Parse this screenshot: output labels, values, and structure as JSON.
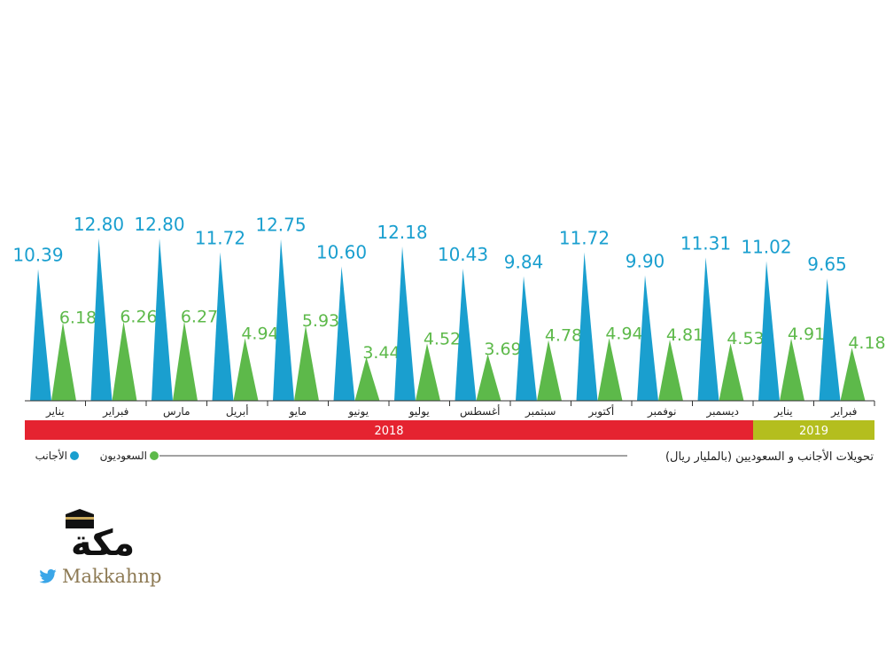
{
  "chart_data": {
    "type": "bar",
    "title": "تحويلات الأجانب و السعوديين (بالمليار ريال)",
    "categories": [
      "يناير",
      "فبراير",
      "مارس",
      "أبريل",
      "مايو",
      "يونيو",
      "يوليو",
      "أغسطس",
      "سبتمبر",
      "أكتوبر",
      "نوفمبر",
      "ديسمبر",
      "يناير",
      "فبراير"
    ],
    "series": [
      {
        "name": "الأجانب",
        "color": "#1a9fcf",
        "values": [
          10.39,
          12.8,
          12.8,
          11.72,
          12.75,
          10.6,
          12.18,
          10.43,
          9.84,
          11.72,
          9.9,
          11.31,
          11.02,
          9.65
        ],
        "labels": [
          "10.39",
          "12.80",
          "12.80",
          "11.72",
          "12.75",
          "10.60",
          "12.18",
          "10.43",
          "9.84",
          "11.72",
          "9.90",
          "11.31",
          "11.02",
          "9.65"
        ]
      },
      {
        "name": "السعوديون",
        "color": "#5db94a",
        "values": [
          6.18,
          6.26,
          6.27,
          4.94,
          5.93,
          3.44,
          4.52,
          3.69,
          4.78,
          4.94,
          4.81,
          4.53,
          4.91,
          4.18
        ],
        "labels": [
          "6.18",
          "6.26",
          "6.27",
          "4.94",
          "5.93",
          "3.44",
          "4.52",
          "3.69",
          "4.78",
          "4.94",
          "4.81",
          "4.53",
          "4.91",
          "4.18"
        ]
      }
    ],
    "years": [
      {
        "label": "2018",
        "months": 12,
        "color": "#e52330"
      },
      {
        "label": "2019",
        "months": 2,
        "color": "#b4be1e"
      }
    ],
    "legend": [
      {
        "name": "الأجانب",
        "color": "#1a9fcf"
      },
      {
        "name": "السعوديون",
        "color": "#5db94a"
      }
    ],
    "ylim": [
      0,
      12.8
    ],
    "xlabel": "",
    "ylabel": ""
  },
  "logo": {
    "wordmark": "مكة",
    "handle": "Makkahnp",
    "twitter_icon": "twitter-bird-icon",
    "handle_color": "#8d7a54"
  }
}
